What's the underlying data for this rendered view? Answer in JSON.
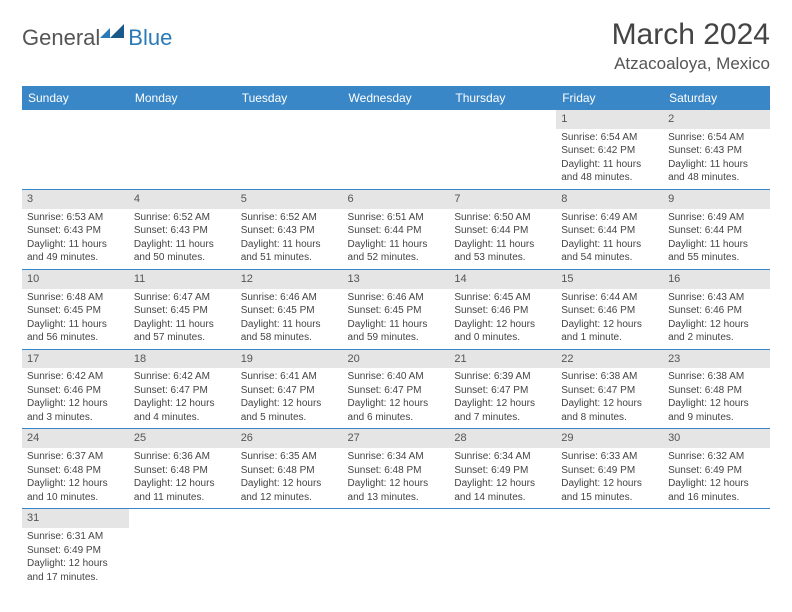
{
  "logo": {
    "text_general": "General",
    "text_blue": "Blue"
  },
  "title": "March 2024",
  "location": "Atzacoaloya, Mexico",
  "header_color": "#3a87c7",
  "day_header_bg": "#e5e5e5",
  "divider_color": "#3a87c7",
  "weekdays": [
    "Sunday",
    "Monday",
    "Tuesday",
    "Wednesday",
    "Thursday",
    "Friday",
    "Saturday"
  ],
  "weeks": [
    [
      null,
      null,
      null,
      null,
      null,
      {
        "n": "1",
        "sr": "6:54 AM",
        "ss": "6:42 PM",
        "dl": "11 hours and 48 minutes."
      },
      {
        "n": "2",
        "sr": "6:54 AM",
        "ss": "6:43 PM",
        "dl": "11 hours and 48 minutes."
      }
    ],
    [
      {
        "n": "3",
        "sr": "6:53 AM",
        "ss": "6:43 PM",
        "dl": "11 hours and 49 minutes."
      },
      {
        "n": "4",
        "sr": "6:52 AM",
        "ss": "6:43 PM",
        "dl": "11 hours and 50 minutes."
      },
      {
        "n": "5",
        "sr": "6:52 AM",
        "ss": "6:43 PM",
        "dl": "11 hours and 51 minutes."
      },
      {
        "n": "6",
        "sr": "6:51 AM",
        "ss": "6:44 PM",
        "dl": "11 hours and 52 minutes."
      },
      {
        "n": "7",
        "sr": "6:50 AM",
        "ss": "6:44 PM",
        "dl": "11 hours and 53 minutes."
      },
      {
        "n": "8",
        "sr": "6:49 AM",
        "ss": "6:44 PM",
        "dl": "11 hours and 54 minutes."
      },
      {
        "n": "9",
        "sr": "6:49 AM",
        "ss": "6:44 PM",
        "dl": "11 hours and 55 minutes."
      }
    ],
    [
      {
        "n": "10",
        "sr": "6:48 AM",
        "ss": "6:45 PM",
        "dl": "11 hours and 56 minutes."
      },
      {
        "n": "11",
        "sr": "6:47 AM",
        "ss": "6:45 PM",
        "dl": "11 hours and 57 minutes."
      },
      {
        "n": "12",
        "sr": "6:46 AM",
        "ss": "6:45 PM",
        "dl": "11 hours and 58 minutes."
      },
      {
        "n": "13",
        "sr": "6:46 AM",
        "ss": "6:45 PM",
        "dl": "11 hours and 59 minutes."
      },
      {
        "n": "14",
        "sr": "6:45 AM",
        "ss": "6:46 PM",
        "dl": "12 hours and 0 minutes."
      },
      {
        "n": "15",
        "sr": "6:44 AM",
        "ss": "6:46 PM",
        "dl": "12 hours and 1 minute."
      },
      {
        "n": "16",
        "sr": "6:43 AM",
        "ss": "6:46 PM",
        "dl": "12 hours and 2 minutes."
      }
    ],
    [
      {
        "n": "17",
        "sr": "6:42 AM",
        "ss": "6:46 PM",
        "dl": "12 hours and 3 minutes."
      },
      {
        "n": "18",
        "sr": "6:42 AM",
        "ss": "6:47 PM",
        "dl": "12 hours and 4 minutes."
      },
      {
        "n": "19",
        "sr": "6:41 AM",
        "ss": "6:47 PM",
        "dl": "12 hours and 5 minutes."
      },
      {
        "n": "20",
        "sr": "6:40 AM",
        "ss": "6:47 PM",
        "dl": "12 hours and 6 minutes."
      },
      {
        "n": "21",
        "sr": "6:39 AM",
        "ss": "6:47 PM",
        "dl": "12 hours and 7 minutes."
      },
      {
        "n": "22",
        "sr": "6:38 AM",
        "ss": "6:47 PM",
        "dl": "12 hours and 8 minutes."
      },
      {
        "n": "23",
        "sr": "6:38 AM",
        "ss": "6:48 PM",
        "dl": "12 hours and 9 minutes."
      }
    ],
    [
      {
        "n": "24",
        "sr": "6:37 AM",
        "ss": "6:48 PM",
        "dl": "12 hours and 10 minutes."
      },
      {
        "n": "25",
        "sr": "6:36 AM",
        "ss": "6:48 PM",
        "dl": "12 hours and 11 minutes."
      },
      {
        "n": "26",
        "sr": "6:35 AM",
        "ss": "6:48 PM",
        "dl": "12 hours and 12 minutes."
      },
      {
        "n": "27",
        "sr": "6:34 AM",
        "ss": "6:48 PM",
        "dl": "12 hours and 13 minutes."
      },
      {
        "n": "28",
        "sr": "6:34 AM",
        "ss": "6:49 PM",
        "dl": "12 hours and 14 minutes."
      },
      {
        "n": "29",
        "sr": "6:33 AM",
        "ss": "6:49 PM",
        "dl": "12 hours and 15 minutes."
      },
      {
        "n": "30",
        "sr": "6:32 AM",
        "ss": "6:49 PM",
        "dl": "12 hours and 16 minutes."
      }
    ],
    [
      {
        "n": "31",
        "sr": "6:31 AM",
        "ss": "6:49 PM",
        "dl": "12 hours and 17 minutes."
      },
      null,
      null,
      null,
      null,
      null,
      null
    ]
  ],
  "labels": {
    "sunrise": "Sunrise:",
    "sunset": "Sunset:",
    "daylight": "Daylight:"
  }
}
